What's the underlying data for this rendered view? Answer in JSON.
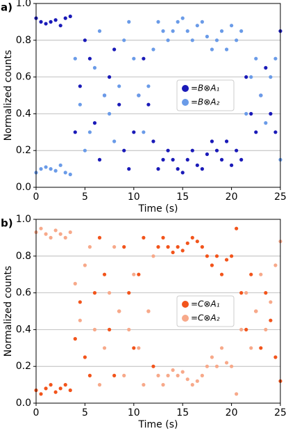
{
  "chart_data": [
    {
      "type": "scatter",
      "panel": "a)",
      "xlabel": "Time (s)",
      "ylabel": "Normalized counts",
      "x": [
        0,
        0.5,
        1,
        1.5,
        2,
        2.5,
        3,
        3.5,
        4,
        4.5,
        5,
        5.5,
        6,
        6.5,
        7,
        7.5,
        8,
        8.5,
        9,
        9.5,
        10,
        10.5,
        11,
        11.5,
        12,
        12.5,
        13,
        13.5,
        14,
        14.5,
        15,
        15.5,
        16,
        16.5,
        17,
        17.5,
        18,
        18.5,
        19,
        19.5,
        20,
        20.5,
        21,
        21.5,
        22,
        22.5,
        23,
        23.5,
        24,
        24.5,
        25
      ],
      "series": [
        {
          "name": "=B⊗A₁",
          "color": "#1a1ab8",
          "values": [
            0.92,
            0.9,
            0.89,
            0.9,
            0.91,
            0.88,
            0.92,
            0.93,
            0.3,
            0.55,
            0.8,
            0.7,
            0.35,
            0.15,
            0.5,
            0.6,
            0.75,
            0.45,
            0.2,
            0.1,
            0.3,
            0.5,
            0.7,
            0.45,
            0.25,
            0.1,
            0.15,
            0.2,
            0.15,
            0.1,
            0.08,
            0.15,
            0.2,
            0.12,
            0.1,
            0.18,
            0.25,
            0.2,
            0.15,
            0.25,
            0.12,
            0.2,
            0.15,
            0.6,
            0.4,
            0.3,
            0.5,
            0.65,
            0.4,
            0.3,
            0.85
          ]
        },
        {
          "name": "=B⊗A₂",
          "color": "#6a9be8",
          "values": [
            0.08,
            0.1,
            0.11,
            0.1,
            0.09,
            0.12,
            0.08,
            0.07,
            0.7,
            0.45,
            0.2,
            0.3,
            0.65,
            0.85,
            0.5,
            0.4,
            0.25,
            0.55,
            0.8,
            0.9,
            0.7,
            0.5,
            0.3,
            0.55,
            0.75,
            0.9,
            0.85,
            0.8,
            0.85,
            0.9,
            0.92,
            0.85,
            0.8,
            0.88,
            0.9,
            0.82,
            0.75,
            0.8,
            0.85,
            0.75,
            0.88,
            0.8,
            0.85,
            0.4,
            0.6,
            0.7,
            0.5,
            0.35,
            0.6,
            0.7,
            0.15
          ]
        }
      ],
      "xlim": [
        0,
        25
      ],
      "xticks": [
        0,
        5,
        10,
        15,
        20,
        25
      ],
      "ylim": [
        0,
        1
      ],
      "yticks": [
        {
          "value": 0,
          "label": "0.0"
        },
        0.2,
        0.4,
        0.6,
        0.8,
        {
          "value": 1,
          "label": "1.0"
        }
      ],
      "grid": true,
      "legend": "right"
    },
    {
      "type": "scatter",
      "panel": "b)",
      "xlabel": "Time (s)",
      "ylabel": "Normalized counts",
      "x": [
        0,
        0.5,
        1,
        1.5,
        2,
        2.5,
        3,
        3.5,
        4,
        4.5,
        5,
        5.5,
        6,
        6.5,
        7,
        7.5,
        8,
        8.5,
        9,
        9.5,
        10,
        10.5,
        11,
        11.5,
        12,
        12.5,
        13,
        13.5,
        14,
        14.5,
        15,
        15.5,
        16,
        16.5,
        17,
        17.5,
        18,
        18.5,
        19,
        19.5,
        20,
        20.5,
        21,
        21.5,
        22,
        22.5,
        23,
        23.5,
        24,
        24.5,
        25
      ],
      "series": [
        {
          "name": "=C⊗A₁",
          "color": "#f2541b",
          "values": [
            0.07,
            0.05,
            0.08,
            0.1,
            0.06,
            0.08,
            0.1,
            0.07,
            0.35,
            0.55,
            0.25,
            0.15,
            0.6,
            0.9,
            0.7,
            0.4,
            0.15,
            0.5,
            0.85,
            0.6,
            0.3,
            0.7,
            0.9,
            0.5,
            0.2,
            0.85,
            0.9,
            0.85,
            0.82,
            0.85,
            0.83,
            0.87,
            0.9,
            0.88,
            0.85,
            0.8,
            0.75,
            0.8,
            0.7,
            0.78,
            0.8,
            0.95,
            0.6,
            0.4,
            0.7,
            0.5,
            0.3,
            0.6,
            0.45,
            0.25,
            0.12
          ]
        },
        {
          "name": "=C⊗A₂",
          "color": "#f7a98a",
          "values": [
            0.93,
            0.95,
            0.92,
            0.9,
            0.94,
            0.92,
            0.9,
            0.93,
            0.65,
            0.45,
            0.75,
            0.85,
            0.4,
            0.1,
            0.3,
            0.6,
            0.85,
            0.5,
            0.15,
            0.4,
            0.7,
            0.3,
            0.1,
            0.5,
            0.8,
            0.15,
            0.1,
            0.15,
            0.18,
            0.15,
            0.17,
            0.13,
            0.1,
            0.12,
            0.15,
            0.2,
            0.25,
            0.2,
            0.3,
            0.22,
            0.2,
            0.05,
            0.4,
            0.6,
            0.3,
            0.5,
            0.7,
            0.4,
            0.55,
            0.75,
            0.88
          ]
        }
      ],
      "xlim": [
        0,
        25
      ],
      "xticks": [
        0,
        5,
        10,
        15,
        20,
        25
      ],
      "ylim": [
        0,
        1
      ],
      "yticks": [
        {
          "value": 0,
          "label": "0.0"
        },
        0.2,
        0.4,
        0.6,
        0.8,
        {
          "value": 1,
          "label": "1.0"
        }
      ],
      "grid": true,
      "legend": "right"
    }
  ]
}
